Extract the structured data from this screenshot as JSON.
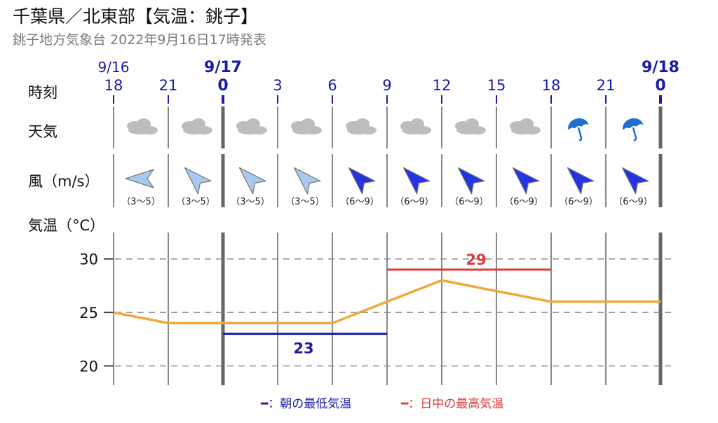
{
  "header": {
    "title": "千葉県／北東部【気温：銚子】",
    "subtitle": "銚子地方気象台 2022年9月16日17時発表"
  },
  "row_labels": {
    "time": "時刻",
    "weather": "天気",
    "wind": "風（m/s）",
    "temp": "気温（°C）"
  },
  "colors": {
    "temp_line": "#f0a93c",
    "min_temp": "#1a1aa8",
    "max_temp": "#e03a3a",
    "grid": "#8a8a8a",
    "day_divider": "#888888",
    "cloud": "#bdbdbd",
    "umbrella": "#1f6fd1",
    "wind_light": "#a8c8f0",
    "wind_strong": "#2434e0"
  },
  "dates": [
    {
      "label": "9/16",
      "bold": false,
      "index": 0
    },
    {
      "label": "9/17",
      "bold": true,
      "index": 2
    },
    {
      "label": "9/18",
      "bold": true,
      "index": 10
    }
  ],
  "hours": [
    {
      "label": "18",
      "bold": false
    },
    {
      "label": "21",
      "bold": false
    },
    {
      "label": "0",
      "bold": true
    },
    {
      "label": "3",
      "bold": false
    },
    {
      "label": "6",
      "bold": false
    },
    {
      "label": "9",
      "bold": false
    },
    {
      "label": "12",
      "bold": false
    },
    {
      "label": "15",
      "bold": false
    },
    {
      "label": "18",
      "bold": false
    },
    {
      "label": "21",
      "bold": false
    },
    {
      "label": "0",
      "bold": true
    }
  ],
  "periods": [
    {
      "weather": "cloud-icon",
      "wind_dir": "E",
      "wind_range": "（3～5）",
      "wind_strength": "light"
    },
    {
      "weather": "cloud-icon",
      "wind_dir": "NW",
      "wind_range": "（3～5）",
      "wind_strength": "light"
    },
    {
      "weather": "cloud-icon",
      "wind_dir": "NW",
      "wind_range": "（3～5）",
      "wind_strength": "light"
    },
    {
      "weather": "cloud-icon",
      "wind_dir": "NW",
      "wind_range": "（3～5）",
      "wind_strength": "light"
    },
    {
      "weather": "cloud-icon",
      "wind_dir": "NW",
      "wind_range": "（6～9）",
      "wind_strength": "strong"
    },
    {
      "weather": "cloud-icon",
      "wind_dir": "NW",
      "wind_range": "（6～9）",
      "wind_strength": "strong"
    },
    {
      "weather": "cloud-icon",
      "wind_dir": "NW",
      "wind_range": "（6～9）",
      "wind_strength": "strong"
    },
    {
      "weather": "cloud-icon",
      "wind_dir": "NW",
      "wind_range": "（6～9）",
      "wind_strength": "strong"
    },
    {
      "weather": "umbrella-icon",
      "wind_dir": "NW",
      "wind_range": "（6～9）",
      "wind_strength": "strong"
    },
    {
      "weather": "umbrella-icon",
      "wind_dir": "NW",
      "wind_range": "（6～9）",
      "wind_strength": "strong"
    }
  ],
  "chart_data": {
    "type": "line",
    "x": [
      "9/16 18",
      "9/16 21",
      "9/17 0",
      "9/17 3",
      "9/17 6",
      "9/17 9",
      "9/17 12",
      "9/17 15",
      "9/17 18",
      "9/17 21",
      "9/18 0"
    ],
    "series": [
      {
        "values": [
          25,
          24,
          24,
          24,
          24,
          26,
          28,
          27,
          26,
          26,
          26
        ]
      }
    ],
    "min_temp": {
      "value": 23,
      "label": "23",
      "from_index": 2,
      "to_index": 5
    },
    "max_temp": {
      "value": 29,
      "label": "29",
      "from_index": 5,
      "to_index": 8
    },
    "yticks": [
      20,
      25,
      30
    ],
    "ylim": [
      18.2,
      32.6
    ],
    "grid": true
  },
  "legend": {
    "min_label": "━：朝の最低気温",
    "max_label": "━：日中の最高気温"
  }
}
